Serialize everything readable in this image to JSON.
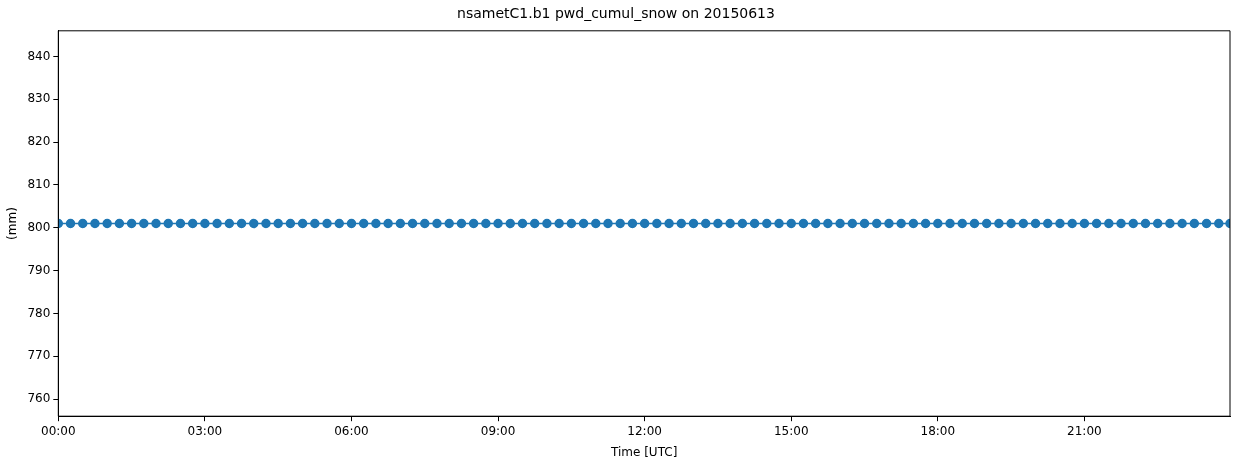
{
  "chart_data": {
    "type": "line",
    "title": "nsametC1.b1 pwd_cumul_snow on 20150613",
    "xlabel": "Time [UTC]",
    "ylabel": "(mm)",
    "x": [
      0,
      0.25,
      0.5,
      0.75,
      1,
      1.25,
      1.5,
      1.75,
      2,
      2.25,
      2.5,
      2.75,
      3,
      3.25,
      3.5,
      3.75,
      4,
      4.25,
      4.5,
      4.75,
      5,
      5.25,
      5.5,
      5.75,
      6,
      6.25,
      6.5,
      6.75,
      7,
      7.25,
      7.5,
      7.75,
      8,
      8.25,
      8.5,
      8.75,
      9,
      9.25,
      9.5,
      9.75,
      10,
      10.25,
      10.5,
      10.75,
      11,
      11.25,
      11.5,
      11.75,
      12,
      12.25,
      12.5,
      12.75,
      13,
      13.25,
      13.5,
      13.75,
      14,
      14.25,
      14.5,
      14.75,
      15,
      15.25,
      15.5,
      15.75,
      16,
      16.25,
      16.5,
      16.75,
      17,
      17.25,
      17.5,
      17.75,
      18,
      18.25,
      18.5,
      18.75,
      19,
      19.25,
      19.5,
      19.75,
      20,
      20.25,
      20.5,
      20.75,
      21,
      21.25,
      21.5,
      21.75,
      22,
      22.25,
      22.5,
      22.75,
      23,
      23.25,
      23.5,
      23.75,
      23.98
    ],
    "series": [
      {
        "color": "#1f77b4",
        "values": [
          801,
          801,
          801,
          801,
          801,
          801,
          801,
          801,
          801,
          801,
          801,
          801,
          801,
          801,
          801,
          801,
          801,
          801,
          801,
          801,
          801,
          801,
          801,
          801,
          801,
          801,
          801,
          801,
          801,
          801,
          801,
          801,
          801,
          801,
          801,
          801,
          801,
          801,
          801,
          801,
          801,
          801,
          801,
          801,
          801,
          801,
          801,
          801,
          801,
          801,
          801,
          801,
          801,
          801,
          801,
          801,
          801,
          801,
          801,
          801,
          801,
          801,
          801,
          801,
          801,
          801,
          801,
          801,
          801,
          801,
          801,
          801,
          801,
          801,
          801,
          801,
          801,
          801,
          801,
          801,
          801,
          801,
          801,
          801,
          801,
          801,
          801,
          801,
          801,
          801,
          801,
          801,
          801,
          801,
          801,
          801,
          801
        ]
      }
    ],
    "xlim": [
      0,
      23.98
    ],
    "ylim": [
      756,
      846
    ],
    "xticks": [
      {
        "value": 0,
        "label": "00:00"
      },
      {
        "value": 3,
        "label": "03:00"
      },
      {
        "value": 6,
        "label": "06:00"
      },
      {
        "value": 9,
        "label": "09:00"
      },
      {
        "value": 12,
        "label": "12:00"
      },
      {
        "value": 15,
        "label": "15:00"
      },
      {
        "value": 18,
        "label": "18:00"
      },
      {
        "value": 21,
        "label": "21:00"
      }
    ],
    "yticks": [
      760,
      770,
      780,
      790,
      800,
      810,
      820,
      830,
      840
    ],
    "marker": "circle",
    "line_style": "solid",
    "grid": false,
    "legend": false
  }
}
